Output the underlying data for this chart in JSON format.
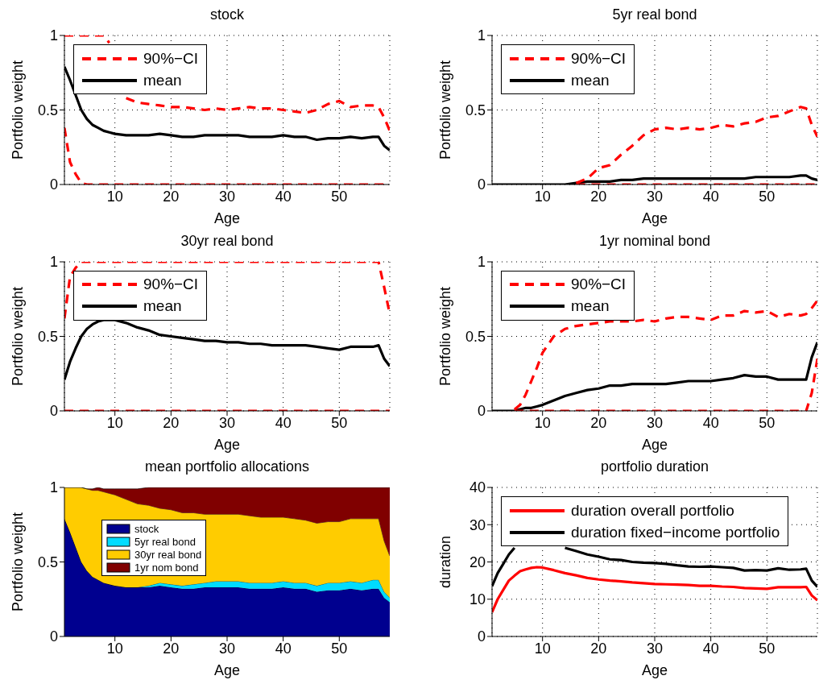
{
  "chart_data": [
    {
      "type": "line",
      "title": "stock",
      "xlabel": "Age",
      "ylabel": "Portfolio weight",
      "x": [
        1,
        2,
        3,
        4,
        5,
        6,
        7,
        8,
        9,
        10,
        12,
        14,
        16,
        18,
        20,
        22,
        24,
        26,
        28,
        30,
        32,
        34,
        36,
        38,
        40,
        42,
        44,
        46,
        48,
        50,
        52,
        54,
        56,
        57,
        58,
        59
      ],
      "xlim": [
        1,
        59
      ],
      "xticks": [
        10,
        20,
        30,
        40,
        50
      ],
      "ylim": [
        0,
        1
      ],
      "yticks": [
        0,
        0.5,
        1
      ],
      "grid": true,
      "legend": "top left",
      "series": [
        {
          "name": "90%−CI",
          "color": "#ff0000",
          "line_style": "dashed",
          "values": [
            1,
            1,
            1,
            1,
            1,
            1,
            1,
            1,
            0.95,
            null,
            0.58,
            0.55,
            0.54,
            0.53,
            0.52,
            0.52,
            0.51,
            0.5,
            0.51,
            0.5,
            0.51,
            0.52,
            0.51,
            0.51,
            0.5,
            0.49,
            0.48,
            0.5,
            0.54,
            0.56,
            0.52,
            0.53,
            0.53,
            0.52,
            0.45,
            0.36
          ]
        },
        {
          "color": "#ff0000",
          "line_style": "dashed",
          "values": [
            0.38,
            0.15,
            0.07,
            0.01,
            0,
            0,
            0,
            0,
            0,
            0,
            0,
            0,
            0,
            0,
            0,
            0,
            0,
            0,
            0,
            0,
            0,
            0,
            0,
            0,
            0,
            0,
            0,
            0,
            0,
            0,
            0,
            0,
            0,
            0,
            0,
            0
          ]
        },
        {
          "name": "mean",
          "color": "#000000",
          "line_style": "solid",
          "values": [
            0.79,
            0.7,
            0.6,
            0.5,
            0.44,
            0.4,
            0.38,
            0.36,
            0.35,
            0.34,
            0.33,
            0.33,
            0.33,
            0.34,
            0.33,
            0.32,
            0.32,
            0.33,
            0.33,
            0.33,
            0.33,
            0.32,
            0.32,
            0.32,
            0.33,
            0.32,
            0.32,
            0.3,
            0.31,
            0.31,
            0.32,
            0.31,
            0.32,
            0.32,
            0.26,
            0.23
          ]
        }
      ]
    },
    {
      "type": "line",
      "title": "5yr real bond",
      "xlabel": "Age",
      "ylabel": "Portfolio weight",
      "x": [
        1,
        2,
        3,
        4,
        5,
        6,
        7,
        8,
        9,
        10,
        12,
        14,
        16,
        18,
        20,
        22,
        24,
        26,
        28,
        30,
        32,
        34,
        36,
        38,
        40,
        42,
        44,
        46,
        48,
        50,
        52,
        54,
        56,
        57,
        58,
        59
      ],
      "xlim": [
        1,
        59
      ],
      "xticks": [
        10,
        20,
        30,
        40,
        50
      ],
      "ylim": [
        0,
        1
      ],
      "yticks": [
        0,
        0.5,
        1
      ],
      "grid": true,
      "legend": "top left",
      "series": [
        {
          "name": "90%−CI",
          "color": "#ff0000",
          "line_style": "dashed",
          "values": [
            null,
            null,
            null,
            null,
            null,
            null,
            null,
            null,
            null,
            null,
            null,
            null,
            0.01,
            0.04,
            0.11,
            0.13,
            0.2,
            0.26,
            0.33,
            0.37,
            0.38,
            0.37,
            0.38,
            0.37,
            0.38,
            0.4,
            0.39,
            0.41,
            0.42,
            0.45,
            0.46,
            0.49,
            0.52,
            0.51,
            0.4,
            0.32
          ]
        },
        {
          "color": "#ff0000",
          "line_style": "dashed",
          "values": [
            null,
            null,
            null,
            null,
            null,
            null,
            null,
            null,
            null,
            null,
            null,
            null,
            0,
            0,
            0,
            0,
            0,
            0,
            0,
            0,
            0,
            0,
            0,
            0,
            0,
            0,
            0,
            0,
            0,
            0,
            0,
            0,
            0,
            0,
            0,
            0
          ]
        },
        {
          "name": "mean",
          "color": "#000000",
          "line_style": "solid",
          "values": [
            0,
            0,
            0,
            0,
            0,
            0,
            0,
            0,
            0,
            0,
            0,
            0,
            0.01,
            0.02,
            0.02,
            0.02,
            0.03,
            0.03,
            0.04,
            0.04,
            0.04,
            0.04,
            0.04,
            0.04,
            0.04,
            0.04,
            0.04,
            0.04,
            0.05,
            0.05,
            0.05,
            0.05,
            0.06,
            0.06,
            0.04,
            0.03
          ]
        }
      ]
    },
    {
      "type": "line",
      "title": "30yr real bond",
      "xlabel": "Age",
      "ylabel": "Portfolio weight",
      "x": [
        1,
        2,
        3,
        4,
        5,
        6,
        7,
        8,
        9,
        10,
        12,
        14,
        16,
        18,
        20,
        22,
        24,
        26,
        28,
        30,
        32,
        34,
        36,
        38,
        40,
        42,
        44,
        46,
        48,
        50,
        52,
        54,
        56,
        57,
        58,
        59
      ],
      "xlim": [
        1,
        59
      ],
      "xticks": [
        10,
        20,
        30,
        40,
        50
      ],
      "ylim": [
        0,
        1
      ],
      "yticks": [
        0,
        0.5,
        1
      ],
      "grid": true,
      "legend": "top left",
      "series": [
        {
          "name": "90%−CI",
          "color": "#ff0000",
          "line_style": "dashed",
          "values": [
            0.62,
            0.9,
            0.96,
            1,
            1,
            1,
            1,
            1,
            1,
            1,
            1,
            1,
            1,
            1,
            1,
            1,
            1,
            1,
            1,
            1,
            1,
            1,
            1,
            1,
            1,
            1,
            1,
            1,
            1,
            1,
            1,
            1,
            1,
            1,
            0.83,
            0.65
          ]
        },
        {
          "color": "#ff0000",
          "line_style": "dashed",
          "values": [
            0,
            0,
            0,
            0,
            0,
            0,
            0,
            0,
            0,
            0,
            0,
            0,
            0,
            0,
            0,
            0,
            0,
            0,
            0,
            0,
            0,
            0,
            0,
            0,
            0,
            0,
            0,
            0,
            0,
            0,
            0,
            0,
            0,
            0,
            0,
            0
          ]
        },
        {
          "name": "mean",
          "color": "#000000",
          "line_style": "solid",
          "values": [
            0.21,
            0.33,
            0.42,
            0.5,
            0.55,
            0.58,
            0.6,
            0.61,
            0.61,
            0.61,
            0.59,
            0.56,
            0.54,
            0.51,
            0.5,
            0.49,
            0.48,
            0.47,
            0.47,
            0.46,
            0.46,
            0.45,
            0.45,
            0.44,
            0.44,
            0.44,
            0.44,
            0.43,
            0.42,
            0.41,
            0.43,
            0.43,
            0.43,
            0.44,
            0.35,
            0.3
          ]
        }
      ]
    },
    {
      "type": "line",
      "title": "1yr nominal bond",
      "xlabel": "Age",
      "ylabel": "Portfolio weight",
      "x": [
        1,
        2,
        3,
        4,
        5,
        6,
        7,
        8,
        9,
        10,
        12,
        14,
        16,
        18,
        20,
        22,
        24,
        26,
        28,
        30,
        32,
        34,
        36,
        38,
        40,
        42,
        44,
        46,
        48,
        50,
        52,
        54,
        56,
        57,
        58,
        59
      ],
      "xlim": [
        1,
        59
      ],
      "xticks": [
        10,
        20,
        30,
        40,
        50
      ],
      "ylim": [
        0,
        1
      ],
      "yticks": [
        0,
        0.5,
        1
      ],
      "grid": true,
      "legend": "top left",
      "series": [
        {
          "name": "90%−CI",
          "color": "#ff0000",
          "line_style": "dashed",
          "values": [
            null,
            null,
            null,
            null,
            0.01,
            0.04,
            0.11,
            0.2,
            0.29,
            0.39,
            0.5,
            0.55,
            0.57,
            0.58,
            0.59,
            0.6,
            0.6,
            0.6,
            0.61,
            0.6,
            0.62,
            0.63,
            0.63,
            0.62,
            0.61,
            0.64,
            0.64,
            0.67,
            0.66,
            0.67,
            0.63,
            0.65,
            0.64,
            0.65,
            0.69,
            0.74
          ]
        },
        {
          "color": "#ff0000",
          "line_style": "dashed",
          "values": [
            null,
            null,
            null,
            null,
            0,
            0,
            0,
            0,
            0,
            0,
            0,
            0,
            0,
            0,
            0,
            0,
            0,
            0,
            0,
            0,
            0,
            0,
            0,
            0,
            0,
            0,
            0,
            0,
            0,
            0,
            0,
            0,
            0,
            0,
            0.12,
            0.35
          ]
        },
        {
          "name": "mean",
          "color": "#000000",
          "line_style": "solid",
          "values": [
            0,
            0,
            0,
            0,
            0,
            0.01,
            0.02,
            0.02,
            0.03,
            0.04,
            0.07,
            0.1,
            0.12,
            0.14,
            0.15,
            0.17,
            0.17,
            0.18,
            0.18,
            0.18,
            0.18,
            0.19,
            0.2,
            0.2,
            0.2,
            0.21,
            0.22,
            0.24,
            0.23,
            0.23,
            0.21,
            0.21,
            0.21,
            0.21,
            0.36,
            0.46
          ]
        }
      ]
    },
    {
      "type": "area",
      "stacked": true,
      "title": "mean portfolio allocations",
      "xlabel": "Age",
      "ylabel": "Portfolio weight",
      "x": [
        1,
        2,
        3,
        4,
        5,
        6,
        7,
        8,
        9,
        10,
        12,
        14,
        16,
        18,
        20,
        22,
        24,
        26,
        28,
        30,
        32,
        34,
        36,
        38,
        40,
        42,
        44,
        46,
        48,
        50,
        52,
        54,
        56,
        57,
        58,
        59
      ],
      "xlim": [
        1,
        59
      ],
      "xticks": [
        10,
        20,
        30,
        40,
        50
      ],
      "ylim": [
        0,
        1
      ],
      "yticks": [
        0,
        0.5,
        1
      ],
      "legend": "top left",
      "series": [
        {
          "name": "stock",
          "color": "#00008f",
          "values": [
            0.79,
            0.7,
            0.6,
            0.5,
            0.44,
            0.4,
            0.38,
            0.36,
            0.35,
            0.34,
            0.33,
            0.33,
            0.33,
            0.34,
            0.33,
            0.32,
            0.32,
            0.33,
            0.33,
            0.33,
            0.33,
            0.32,
            0.32,
            0.32,
            0.33,
            0.32,
            0.32,
            0.3,
            0.31,
            0.31,
            0.32,
            0.31,
            0.32,
            0.32,
            0.26,
            0.23
          ]
        },
        {
          "name": "5yr real bond",
          "color": "#00dcff",
          "values": [
            0,
            0,
            0,
            0,
            0,
            0,
            0,
            0,
            0,
            0,
            0,
            0,
            0.01,
            0.02,
            0.02,
            0.02,
            0.03,
            0.03,
            0.04,
            0.04,
            0.04,
            0.04,
            0.04,
            0.04,
            0.04,
            0.04,
            0.04,
            0.04,
            0.05,
            0.05,
            0.05,
            0.05,
            0.06,
            0.06,
            0.04,
            0.03
          ]
        },
        {
          "name": "30yr real bond",
          "color": "#ffcc00",
          "values": [
            0.21,
            0.3,
            0.4,
            0.5,
            0.55,
            0.58,
            0.6,
            0.61,
            0.61,
            0.61,
            0.59,
            0.56,
            0.54,
            0.5,
            0.5,
            0.49,
            0.48,
            0.46,
            0.45,
            0.45,
            0.45,
            0.45,
            0.44,
            0.44,
            0.43,
            0.43,
            0.42,
            0.42,
            0.41,
            0.41,
            0.42,
            0.43,
            0.41,
            0.41,
            0.34,
            0.28
          ]
        },
        {
          "name": "1yr nom bond",
          "color": "#800000",
          "values": [
            0,
            0,
            0,
            0,
            0,
            0.01,
            0.02,
            0.02,
            0.03,
            0.04,
            0.07,
            0.1,
            0.12,
            0.14,
            0.15,
            0.17,
            0.17,
            0.18,
            0.18,
            0.18,
            0.18,
            0.19,
            0.2,
            0.2,
            0.2,
            0.21,
            0.22,
            0.24,
            0.23,
            0.23,
            0.21,
            0.21,
            0.21,
            0.21,
            0.36,
            0.46
          ]
        }
      ]
    },
    {
      "type": "line",
      "title": "portfolio duration",
      "xlabel": "Age",
      "ylabel": "duration",
      "x": [
        1,
        2,
        3,
        4,
        5,
        6,
        7,
        8,
        9,
        10,
        12,
        14,
        16,
        18,
        20,
        22,
        24,
        26,
        28,
        30,
        32,
        34,
        36,
        38,
        40,
        42,
        44,
        46,
        48,
        50,
        52,
        54,
        56,
        57,
        58,
        59
      ],
      "xlim": [
        1,
        59
      ],
      "xticks": [
        10,
        20,
        30,
        40,
        50
      ],
      "ylim": [
        0,
        40
      ],
      "yticks": [
        0,
        10,
        20,
        30,
        40
      ],
      "grid": true,
      "legend": "top left",
      "series": [
        {
          "name": "duration overall portfolio",
          "color": "#ff0000",
          "line_style": "solid",
          "values": [
            6.5,
            10,
            12.5,
            15,
            16.3,
            17.5,
            18,
            18.4,
            18.6,
            18.5,
            17.8,
            17,
            16.4,
            15.7,
            15.3,
            15,
            14.8,
            14.5,
            14.3,
            14.1,
            14,
            13.9,
            13.8,
            13.6,
            13.6,
            13.4,
            13.3,
            13,
            12.9,
            12.8,
            13.2,
            13.2,
            13.2,
            13.3,
            11,
            9.7
          ]
        },
        {
          "name": "duration fixed−income portfolio",
          "color": "#000000",
          "line_style": "solid",
          "values": [
            13.5,
            17,
            19.5,
            22,
            23.8,
            null,
            null,
            null,
            null,
            null,
            null,
            23.8,
            22.9,
            22,
            21.4,
            20.7,
            20.5,
            20,
            19.8,
            19.7,
            19.5,
            19.1,
            18.8,
            18.7,
            18.8,
            18.6,
            18.4,
            17.7,
            17.8,
            17.7,
            18.3,
            17.9,
            18,
            18.2,
            15,
            13.3
          ]
        }
      ]
    }
  ]
}
